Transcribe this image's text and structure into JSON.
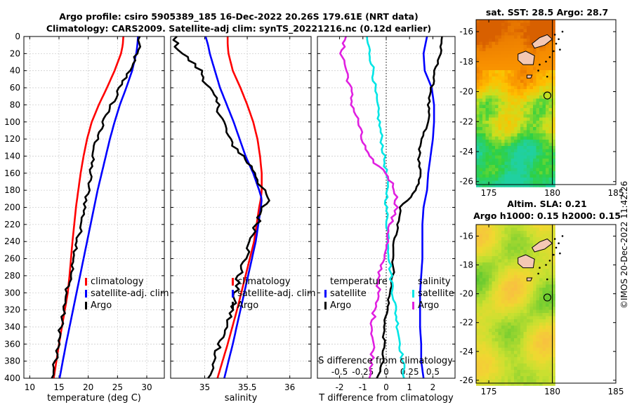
{
  "title": {
    "line1": "Argo profile: csiro 5905389_185 16-Dec-2022 20.26S 179.61E (NRT data)",
    "line2": "Climatology: CARS2009. Satellite-adj clim: synTS_20221216.nc (0.12d earlier)"
  },
  "credit": "©IMOS 20-Dec-2022 11:42:26",
  "colors": {
    "climatology": "#ff0000",
    "satellite": "#0000ff",
    "argo": "#000000",
    "salinity_satellite": "#00e5e5",
    "salinity_argo": "#e020e0"
  },
  "chart_data": [
    {
      "type": "line",
      "id": "temperature",
      "xlabel": "temperature (deg C)",
      "xlim": [
        9,
        33
      ],
      "ylim": [
        0,
        400
      ],
      "xticks": [
        10,
        15,
        20,
        25,
        30
      ],
      "yticks": [
        0,
        20,
        40,
        60,
        80,
        100,
        120,
        140,
        160,
        180,
        200,
        220,
        240,
        260,
        280,
        300,
        320,
        340,
        360,
        380,
        400
      ],
      "depth": [
        0,
        10,
        20,
        40,
        60,
        80,
        100,
        120,
        140,
        160,
        180,
        200,
        240,
        280,
        300,
        320,
        360,
        400
      ],
      "legend": [
        "climatology",
        "satellite-adj. clim",
        "Argo"
      ],
      "series": [
        {
          "name": "climatology",
          "color": "#ff0000",
          "values": [
            26.0,
            25.9,
            25.6,
            24.5,
            23.2,
            21.8,
            20.6,
            19.8,
            19.2,
            18.7,
            18.3,
            17.9,
            17.3,
            16.8,
            16.5,
            16.0,
            15.0,
            14.1
          ]
        },
        {
          "name": "satellite-adj. clim",
          "color": "#0000ff",
          "values": [
            28.5,
            28.4,
            28.2,
            27.5,
            26.5,
            25.4,
            24.5,
            23.7,
            23.0,
            22.3,
            21.6,
            21.0,
            19.8,
            18.6,
            18.0,
            17.4,
            16.2,
            15.1
          ]
        },
        {
          "name": "Argo",
          "color": "#000000",
          "values": [
            28.7,
            28.6,
            28.3,
            27.0,
            25.4,
            24.0,
            22.5,
            21.5,
            20.7,
            20.4,
            20.0,
            19.4,
            18.2,
            17.0,
            16.3,
            15.8,
            14.9,
            13.7
          ]
        }
      ]
    },
    {
      "type": "line",
      "id": "salinity",
      "xlabel": "salinity",
      "xlim": [
        34.6,
        36.25
      ],
      "ylim": [
        0,
        400
      ],
      "xticks": [
        35,
        35.5,
        36
      ],
      "depth": [
        0,
        10,
        20,
        40,
        60,
        80,
        100,
        120,
        140,
        160,
        180,
        190,
        200,
        240,
        280,
        320,
        360,
        400
      ],
      "legend": [
        "climatology",
        "satellite-adj. clim",
        "Argo"
      ],
      "series": [
        {
          "name": "climatology",
          "color": "#ff0000",
          "values": [
            35.27,
            35.27,
            35.28,
            35.33,
            35.42,
            35.5,
            35.57,
            35.62,
            35.65,
            35.67,
            35.67,
            35.66,
            35.64,
            35.58,
            35.48,
            35.38,
            35.27,
            35.15
          ]
        },
        {
          "name": "satellite-adj. clim",
          "color": "#0000ff",
          "values": [
            35.01,
            35.04,
            35.06,
            35.12,
            35.18,
            35.26,
            35.34,
            35.41,
            35.48,
            35.57,
            35.64,
            35.67,
            35.66,
            35.6,
            35.51,
            35.42,
            35.33,
            35.23
          ]
        },
        {
          "name": "Argo",
          "color": "#000000",
          "values": [
            34.66,
            34.66,
            34.74,
            34.95,
            35.05,
            35.15,
            35.22,
            35.28,
            35.45,
            35.6,
            35.68,
            35.75,
            35.68,
            35.55,
            35.4,
            35.32,
            35.18,
            35.05
          ]
        }
      ]
    },
    {
      "type": "line",
      "id": "differences",
      "xlabel": "T difference from climatology",
      "xlabel_top": "S difference from climatology",
      "xlim": [
        -2.95,
        2.95
      ],
      "ylim": [
        0,
        400
      ],
      "xticks": [
        -2,
        -1,
        0,
        1,
        2
      ],
      "xticks_s_labels": [
        "-0.5",
        "-0.25",
        "0",
        "0.25",
        "0.5"
      ],
      "depth": [
        0,
        20,
        40,
        60,
        80,
        100,
        120,
        140,
        160,
        180,
        200,
        220,
        240,
        260,
        280,
        300,
        320,
        340,
        360,
        380,
        400
      ],
      "legend_left": [
        "temperature",
        "satellite",
        "Argo"
      ],
      "legend_right": [
        "salinity",
        "satellite",
        "Argo"
      ],
      "series": [
        {
          "name": "temperature satellite",
          "color": "#0000ff",
          "values": [
            1.75,
            1.6,
            1.65,
            1.95,
            2.05,
            2.05,
            2.0,
            1.9,
            1.8,
            1.75,
            1.6,
            1.55,
            1.55,
            1.55,
            1.5,
            1.45,
            1.45,
            1.45,
            1.5,
            1.5,
            1.6
          ]
        },
        {
          "name": "temperature Argo",
          "color": "#000000",
          "values": [
            2.4,
            2.3,
            2.1,
            1.95,
            1.8,
            1.8,
            1.5,
            1.4,
            1.45,
            1.3,
            0.6,
            0.5,
            0.35,
            0.3,
            0.3,
            0.15,
            0.05,
            -0.1,
            -0.1,
            -0.15,
            -0.4
          ]
        },
        {
          "name": "salinity satellite",
          "color": "#00e5e5",
          "values": [
            -0.85,
            -0.7,
            -0.55,
            -0.5,
            -0.4,
            -0.3,
            -0.2,
            -0.1,
            0.0,
            0.05,
            0.0,
            0.05,
            0.1,
            0.15,
            0.2,
            0.3,
            0.4,
            0.5,
            0.6,
            0.7,
            0.8
          ]
        },
        {
          "name": "salinity Argo",
          "color": "#e020e0",
          "values": [
            -1.8,
            -1.9,
            -1.7,
            -1.55,
            -1.45,
            -1.2,
            -1.05,
            -0.8,
            0.0,
            0.4,
            0.45,
            0.15,
            0.05,
            -0.15,
            -0.3,
            -0.35,
            -0.5,
            -0.6,
            -0.55,
            -0.6,
            -0.65
          ]
        }
      ]
    },
    {
      "type": "heatmap",
      "id": "sst-map",
      "title": "sat. SST: 28.5 Argo: 28.7",
      "xlim": [
        174,
        185
      ],
      "ylim": [
        -26.2,
        -15.2
      ],
      "xticks": [
        175,
        180,
        185
      ],
      "yticks": [
        -16,
        -18,
        -20,
        -22,
        -24,
        -26
      ],
      "profile_location": {
        "lon": 179.61,
        "lat": -20.26
      },
      "data_lon_max": 180
    },
    {
      "type": "heatmap",
      "id": "sla-map",
      "title": "Altim. SLA: 0.21",
      "subtitle": "Argo h1000: 0.15 h2000: 0.15",
      "xlim": [
        174,
        185
      ],
      "ylim": [
        -26.2,
        -15.2
      ],
      "xticks": [
        175,
        180,
        185
      ],
      "yticks": [
        -16,
        -18,
        -20,
        -22,
        -24,
        -26
      ],
      "profile_location": {
        "lon": 179.61,
        "lat": -20.26
      },
      "data_lon_max": 180
    }
  ]
}
